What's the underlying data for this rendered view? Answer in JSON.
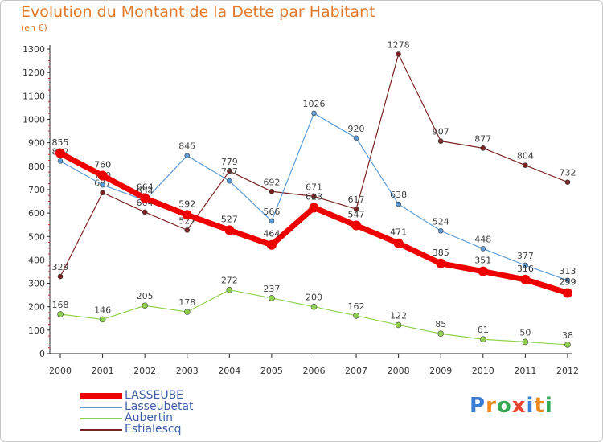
{
  "title": "Evolution du Montant de la Dette par Habitant",
  "unit": "(en €)",
  "logo": {
    "text": "Proxiti",
    "colors": [
      "#3a7fd5",
      "#f08a1c",
      "#34a853",
      "#e8442e",
      "#3a7fd5",
      "#f08a1c",
      "#34a853"
    ]
  },
  "chart_data": {
    "type": "line",
    "x": [
      "2000",
      "2001",
      "2002",
      "2003",
      "2004",
      "2005",
      "2006",
      "2007",
      "2008",
      "2009",
      "2010",
      "2011",
      "2012"
    ],
    "ylim": [
      0,
      1300
    ],
    "yticks": [
      0,
      100,
      200,
      300,
      400,
      500,
      600,
      700,
      800,
      900,
      1000,
      1100,
      1200,
      1300
    ],
    "grid": false,
    "legend_position": "bottom-left",
    "series": [
      {
        "name": "Estialescq",
        "color": "#7a2222",
        "width": 1.2,
        "marker": 3,
        "values": [
          329,
          687,
          604,
          527,
          779,
          692,
          671,
          617,
          1278,
          907,
          877,
          804,
          732
        ]
      },
      {
        "name": "Lasseubetat",
        "color": "#5b9bd5",
        "width": 1.2,
        "marker": 3,
        "values": [
          822,
          720,
          654,
          845,
          737,
          566,
          1026,
          920,
          638,
          524,
          448,
          377,
          313
        ]
      },
      {
        "name": "Aubertin",
        "color": "#8fd14f",
        "width": 1.2,
        "marker": 3.5,
        "values": [
          168,
          146,
          205,
          178,
          272,
          237,
          200,
          162,
          122,
          85,
          61,
          50,
          38
        ]
      },
      {
        "name": "LASSEUBE",
        "color": "#ee0000",
        "width": 7,
        "marker": 6,
        "values": [
          855,
          760,
          664,
          592,
          527,
          464,
          623,
          547,
          471,
          385,
          351,
          316,
          259
        ]
      }
    ]
  }
}
